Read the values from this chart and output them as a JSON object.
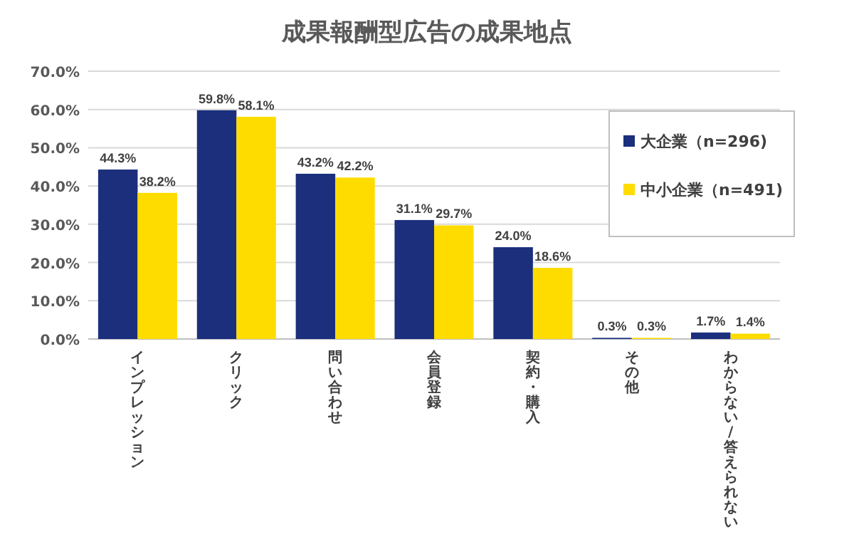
{
  "chart_data": {
    "type": "bar",
    "title": "成果報酬型広告の成果地点",
    "categories": [
      "インプレッション",
      "クリック",
      "問い合わせ",
      "会員登録",
      "契約・購入",
      "その他",
      "わからない/答えられない"
    ],
    "series": [
      {
        "name": "大企業（n=296)",
        "color": "#1b2f7d",
        "values": [
          44.3,
          59.8,
          43.2,
          31.1,
          24.0,
          0.3,
          1.7
        ],
        "value_labels": [
          "44.3%",
          "59.8%",
          "43.2%",
          "31.1%",
          "24.0%",
          "0.3%",
          "1.7%"
        ]
      },
      {
        "name": "中小企業（n=491)",
        "color": "#ffdc00",
        "values": [
          38.2,
          58.1,
          42.2,
          29.7,
          18.6,
          0.3,
          1.4
        ],
        "value_labels": [
          "38.2%",
          "58.1%",
          "42.2%",
          "29.7%",
          "18.6%",
          "0.3%",
          "1.4%"
        ]
      }
    ],
    "ylim": [
      0,
      70
    ],
    "yticks": [
      {
        "value": 0,
        "label": "0.0%"
      },
      {
        "value": 10,
        "label": "10.0%"
      },
      {
        "value": 20,
        "label": "20.0%"
      },
      {
        "value": 30,
        "label": "30.0%"
      },
      {
        "value": 40,
        "label": "40.0%"
      },
      {
        "value": 50,
        "label": "50.0%"
      },
      {
        "value": 60,
        "label": "60.0%"
      },
      {
        "value": 70,
        "label": "70.0%"
      }
    ],
    "grid": "y",
    "legend": "top right"
  }
}
